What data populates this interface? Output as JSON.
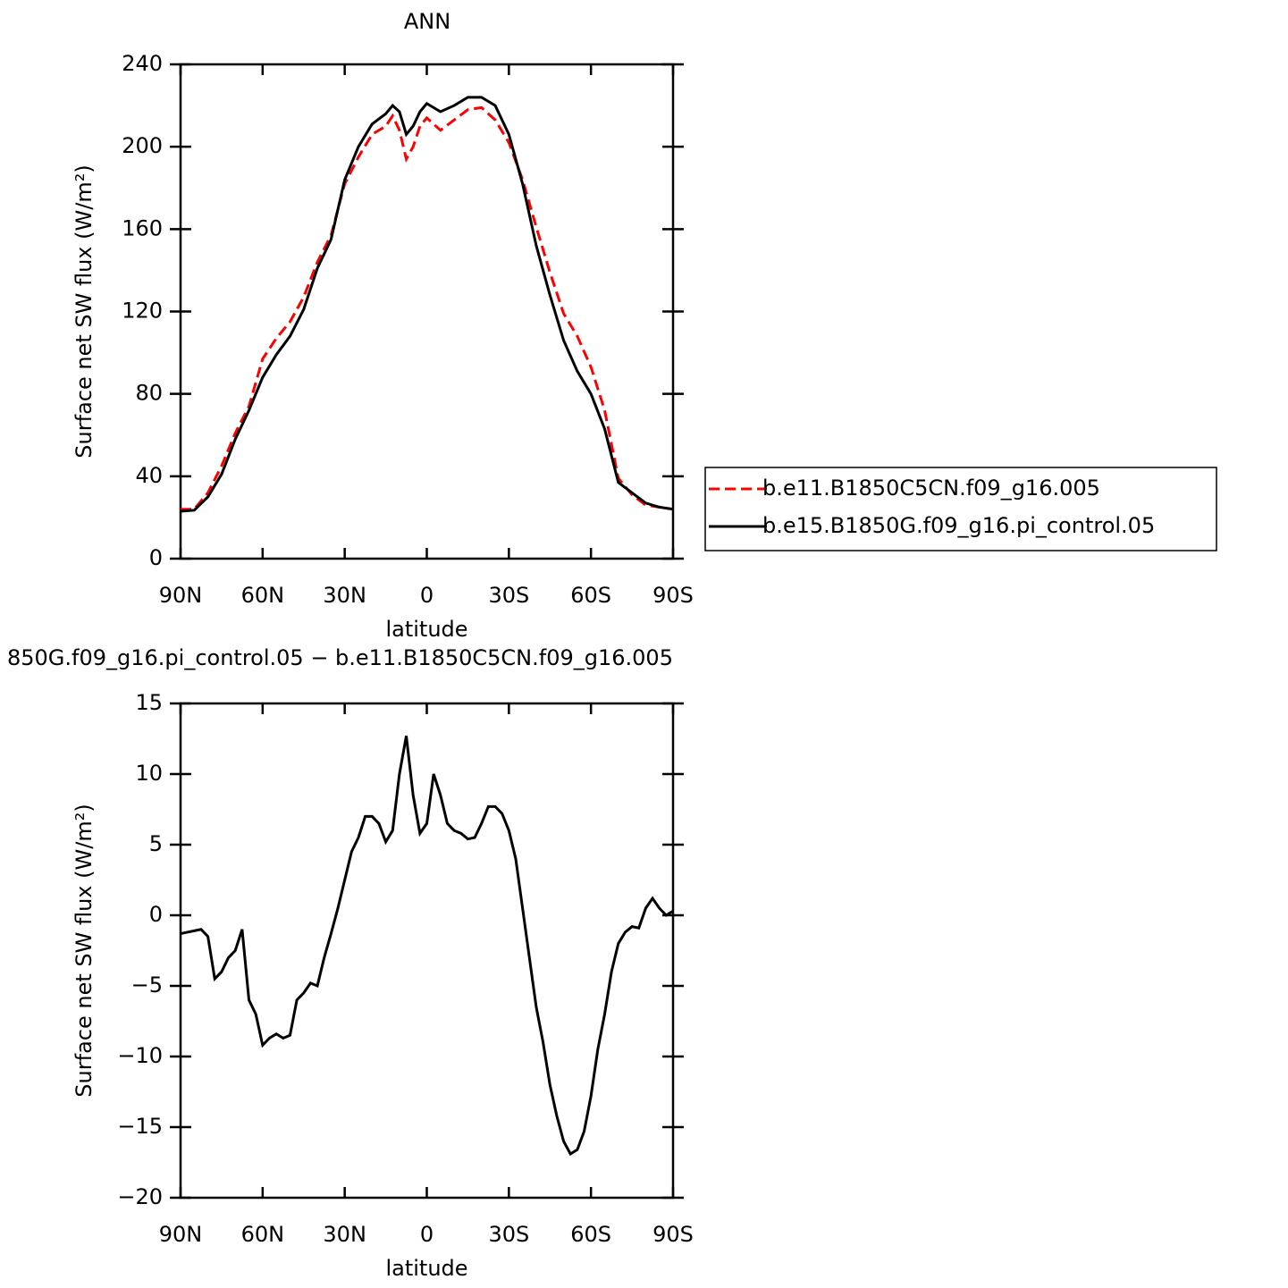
{
  "chart_data": [
    {
      "type": "line",
      "title": "ANN",
      "xlabel": "latitude",
      "ylabel": "Surface net SW flux (W/m²)",
      "x": [
        90,
        85,
        80,
        75,
        70,
        65,
        60,
        55,
        50,
        45,
        40,
        35,
        30,
        25,
        20,
        15,
        12.5,
        10,
        7.5,
        5,
        2.5,
        0,
        -5,
        -10,
        -15,
        -20,
        -25,
        -30,
        -35,
        -40,
        -45,
        -50,
        -55,
        -60,
        -65,
        -70,
        -75,
        -80,
        -85,
        -90
      ],
      "series": [
        {
          "name": "b.e11.B1850C5CN.f09_g16.005",
          "color": "#ff0000",
          "line_style": "dashed",
          "values": [
            24,
            24,
            32,
            45,
            61,
            74,
            97,
            107,
            115,
            127,
            144,
            157,
            182,
            195,
            206,
            210,
            215,
            208,
            194,
            200,
            210,
            214,
            208,
            213,
            218,
            219,
            213,
            202,
            184,
            161,
            139,
            119,
            108,
            93,
            72,
            39,
            31,
            26,
            25,
            24
          ]
        },
        {
          "name": "b.e15.B1850G.f09_g16.pi_control.05",
          "color": "#000000",
          "line_style": "solid",
          "values": [
            23,
            23.5,
            30,
            41,
            58,
            72,
            88,
            99,
            108,
            121,
            141,
            155,
            184,
            200,
            211,
            216,
            220,
            217,
            206,
            210,
            217,
            221,
            217,
            220,
            224,
            224,
            220,
            206,
            182,
            152,
            128,
            106,
            91,
            80,
            63,
            37,
            32,
            27,
            25,
            24
          ]
        }
      ],
      "xlim": [
        90,
        -90
      ],
      "xticks": [
        {
          "value": 90,
          "label": "90N"
        },
        {
          "value": 60,
          "label": "60N"
        },
        {
          "value": 30,
          "label": "30N"
        },
        0,
        {
          "value": -30,
          "label": "30S"
        },
        {
          "value": -60,
          "label": "60S"
        },
        {
          "value": -90,
          "label": "90S"
        }
      ],
      "ylim": [
        0,
        240
      ],
      "yticks": [
        0,
        40,
        80,
        120,
        160,
        200,
        240
      ],
      "legend": "outside-right"
    },
    {
      "type": "line",
      "title": "850G.f09_g16.pi_control.05 − b.e11.B1850C5CN.f09_g16.005",
      "xlabel": "latitude",
      "ylabel": "Surface net SW flux (W/m²)",
      "x": [
        90,
        87.5,
        85,
        82.5,
        80,
        77.5,
        75,
        72.5,
        70,
        67.5,
        65,
        62.5,
        60,
        57.5,
        55,
        52.5,
        50,
        47.5,
        45,
        42.5,
        40,
        37.5,
        35,
        32.5,
        30,
        27.5,
        25,
        22.5,
        20,
        17.5,
        15,
        12.5,
        10,
        7.5,
        5,
        2.5,
        0,
        -2.5,
        -5,
        -7.5,
        -10,
        -12.5,
        -15,
        -17.5,
        -20,
        -22.5,
        -25,
        -27.5,
        -30,
        -32.5,
        -35,
        -37.5,
        -40,
        -42.5,
        -45,
        -47.5,
        -50,
        -52.5,
        -55,
        -57.5,
        -60,
        -62.5,
        -65,
        -67.5,
        -70,
        -72.5,
        -75,
        -77.5,
        -80,
        -82.5,
        -85,
        -87.5,
        -90
      ],
      "values": [
        -1.3,
        -1.2,
        -1.1,
        -1.0,
        -1.5,
        -4.5,
        -4.0,
        -3.0,
        -2.5,
        -1.0,
        -6.0,
        -7.0,
        -9.2,
        -8.7,
        -8.4,
        -8.7,
        -8.5,
        -6.0,
        -5.5,
        -4.8,
        -5.0,
        -3.0,
        -1.3,
        0.5,
        2.5,
        4.5,
        5.5,
        7.0,
        7.0,
        6.5,
        5.2,
        6.0,
        10.0,
        12.7,
        8.5,
        5.8,
        6.5,
        10.0,
        8.5,
        6.5,
        6.0,
        5.8,
        5.4,
        5.5,
        6.5,
        7.7,
        7.7,
        7.2,
        6.0,
        4.0,
        0.5,
        -3.0,
        -6.5,
        -9.0,
        -12.0,
        -14.2,
        -16.0,
        -16.9,
        -16.6,
        -15.3,
        -12.8,
        -9.5,
        -7.0,
        -4.0,
        -2.0,
        -1.2,
        -0.8,
        -0.9,
        0.5,
        1.2,
        0.5,
        0.0,
        0.3
      ],
      "color": "#000000",
      "line_style": "solid",
      "xlim": [
        90,
        -90
      ],
      "xticks": [
        {
          "value": 90,
          "label": "90N"
        },
        {
          "value": 60,
          "label": "60N"
        },
        {
          "value": 30,
          "label": "30N"
        },
        0,
        {
          "value": -30,
          "label": "30S"
        },
        {
          "value": -60,
          "label": "60S"
        },
        {
          "value": -90,
          "label": "90S"
        }
      ],
      "ylim": [
        -20,
        15
      ],
      "yticks": [
        {
          "value": -20,
          "label": "−20"
        },
        {
          "value": -15,
          "label": "−15"
        },
        {
          "value": -10,
          "label": "−10"
        },
        {
          "value": -5,
          "label": "−5"
        },
        0,
        5,
        10,
        15
      ]
    }
  ]
}
